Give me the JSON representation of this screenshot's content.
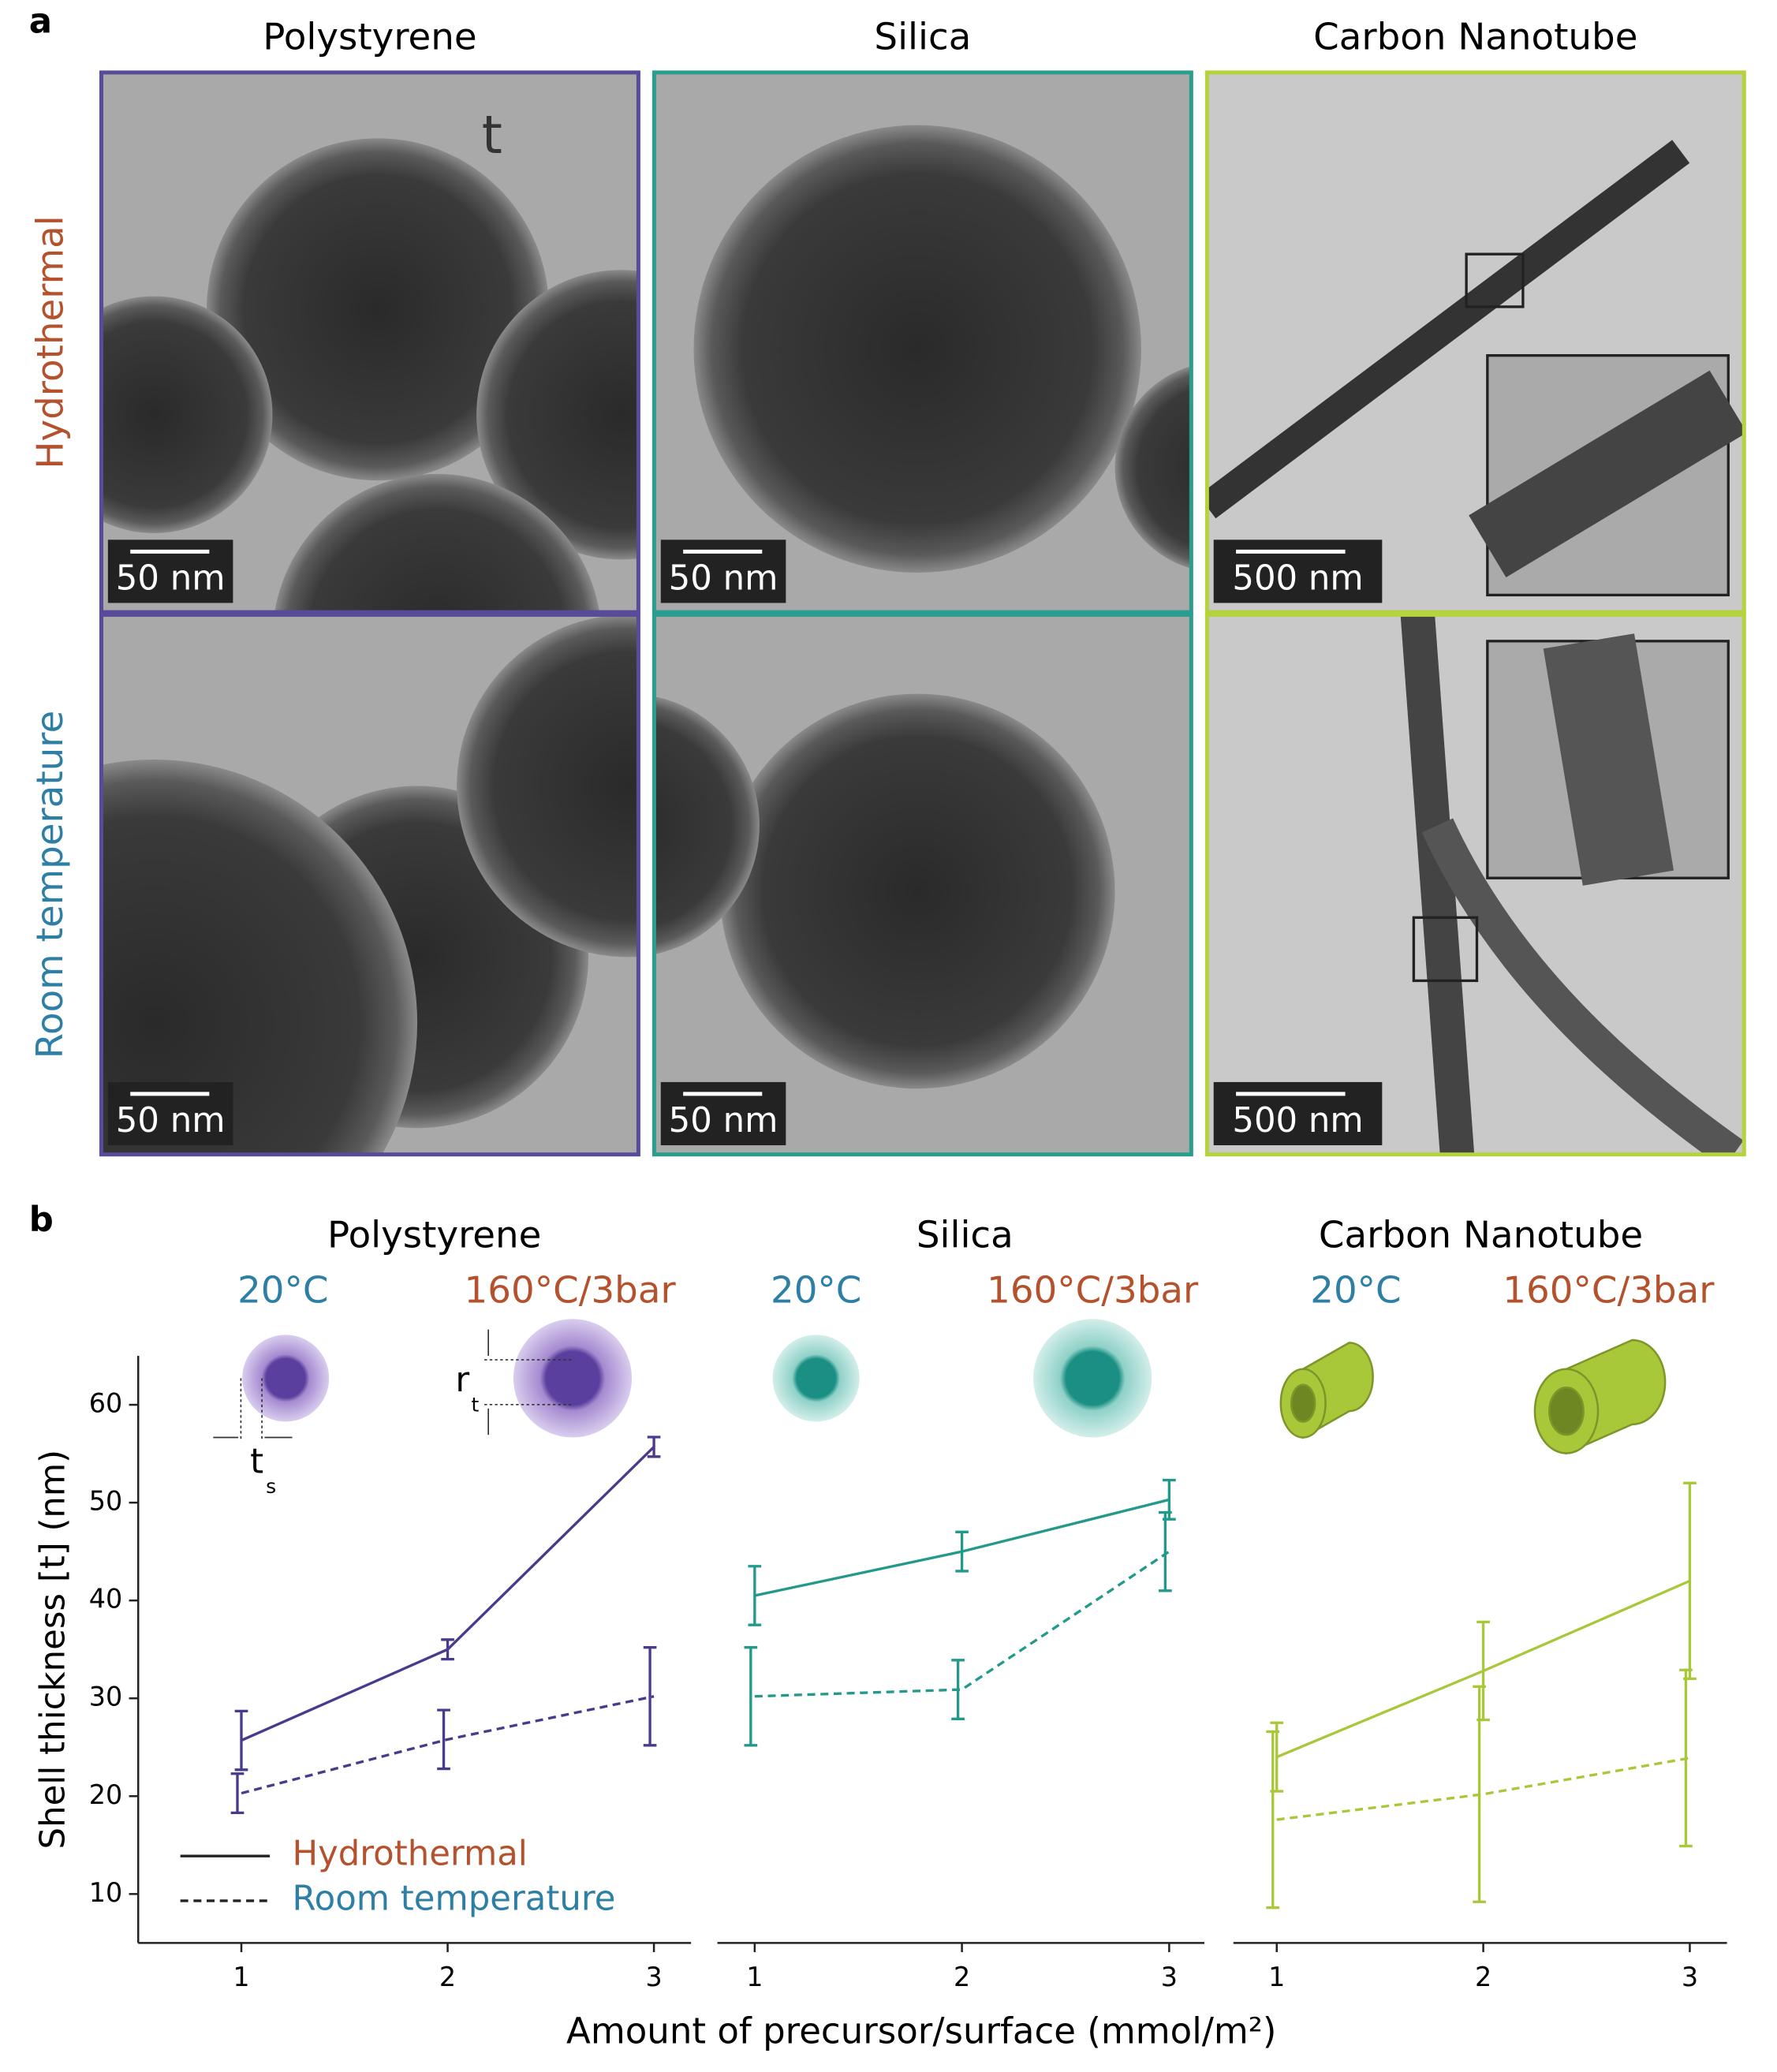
{
  "panel_a": {
    "label": "a",
    "columns": [
      "Polystyrene",
      "Silica",
      "Carbon Nanotube"
    ],
    "rows": [
      "Hydrothermal",
      "Room temperature"
    ],
    "scale_bars": [
      [
        "50 nm",
        "50 nm",
        "500 nm"
      ],
      [
        "50 nm",
        "50 nm",
        "500 nm"
      ]
    ],
    "annotation": "t"
  },
  "panel_b": {
    "label": "b",
    "xlabel": "Amount of precursor/surface (mmol/m²)",
    "ylabel": "Shell thickness [t] (nm)",
    "schematic_labels": {
      "radius": "r",
      "radius_sub": "t",
      "shell": "t",
      "shell_sub": "s"
    }
  },
  "chart_data": [
    {
      "type": "line",
      "title": "Polystyrene",
      "conditions": [
        "20°C",
        "160°C/3bar"
      ],
      "x": [
        1,
        2,
        3
      ],
      "xlim": [
        0.5,
        3.18
      ],
      "xticks": [
        1,
        2,
        3
      ],
      "ylim": [
        5,
        65
      ],
      "yticks": [
        10,
        20,
        30,
        40,
        50,
        60
      ],
      "legend": true,
      "series": [
        {
          "name": "Hydrothermal",
          "color": "#4b3a8c",
          "text_color": "#b5522e",
          "dashed": false,
          "values": [
            25.7,
            35,
            55.7
          ],
          "errors": [
            3,
            1,
            1
          ]
        },
        {
          "name": "Room temperature",
          "color": "#4b3a8c",
          "text_color": "#2e7fa6",
          "dashed": true,
          "values": [
            20.3,
            25.8,
            30.2
          ],
          "errors": [
            2,
            3,
            5
          ]
        }
      ]
    },
    {
      "type": "line",
      "title": "Silica",
      "conditions": [
        "20°C",
        "160°C/3bar"
      ],
      "x": [
        1,
        2,
        3
      ],
      "xlim": [
        0.82,
        3.17
      ],
      "xticks": [
        1,
        2,
        3
      ],
      "ylim": [
        5,
        65
      ],
      "series": [
        {
          "color": "#23998b",
          "dashed": false,
          "values": [
            40.5,
            45,
            50.3
          ],
          "errors": [
            3,
            2,
            2
          ]
        },
        {
          "color": "#23998b",
          "dashed": true,
          "values": [
            30.2,
            30.9,
            45
          ],
          "errors": [
            5,
            3,
            4
          ]
        }
      ]
    },
    {
      "type": "line",
      "title": "Carbon Nanotube",
      "conditions": [
        "20°C",
        "160°C/3bar"
      ],
      "x": [
        1,
        2,
        3
      ],
      "xlim": [
        0.79,
        3.18
      ],
      "xticks": [
        1,
        2,
        3
      ],
      "ylim": [
        5,
        65
      ],
      "series": [
        {
          "color": "#a8c83a",
          "dashed": false,
          "values": [
            24,
            32.8,
            42
          ],
          "errors": [
            3.5,
            5,
            10
          ]
        },
        {
          "color": "#a8c83a",
          "dashed": true,
          "values": [
            17.6,
            20.2,
            23.9
          ],
          "errors": [
            9,
            11,
            9
          ]
        }
      ]
    }
  ]
}
